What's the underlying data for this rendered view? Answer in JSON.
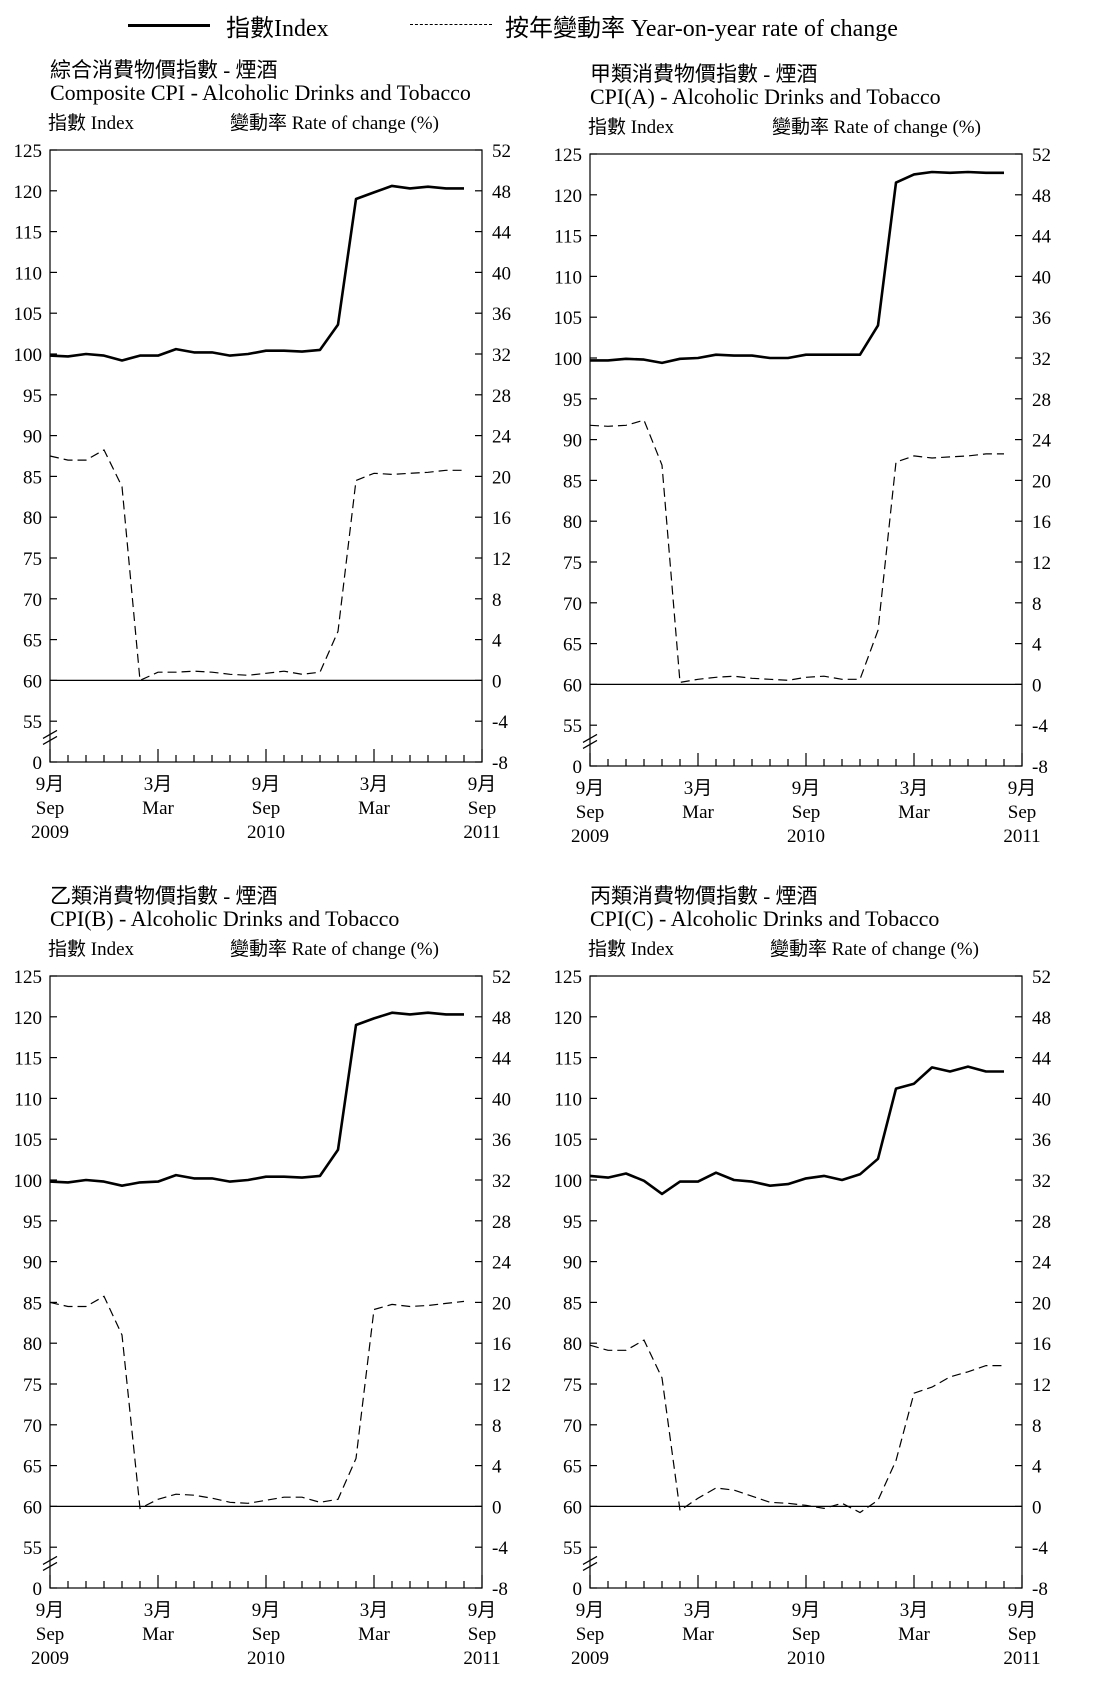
{
  "legend": {
    "index_label": "指數Index",
    "rate_label": "按年變動率 Year-on-year rate of change"
  },
  "common": {
    "left_axis_label": "指數 Index",
    "right_axis_label": "變動率 Rate of change (%)",
    "left_ticks": [
      125,
      120,
      115,
      110,
      105,
      100,
      95,
      90,
      85,
      80,
      75,
      70,
      65,
      60,
      55,
      0
    ],
    "right_ticks": [
      52,
      48,
      44,
      40,
      36,
      32,
      28,
      24,
      20,
      16,
      12,
      8,
      4,
      0,
      -4,
      -8
    ],
    "x_ticks": [
      {
        "zh": "9月",
        "en": "Sep",
        "year": "2009"
      },
      {
        "zh": "3月",
        "en": "Mar",
        "year": ""
      },
      {
        "zh": "9月",
        "en": "Sep",
        "year": "2010"
      },
      {
        "zh": "3月",
        "en": "Mar",
        "year": ""
      },
      {
        "zh": "9月",
        "en": "Sep",
        "year": "2011"
      }
    ],
    "colors": {
      "line": "#000000",
      "background": "#ffffff"
    }
  },
  "chart_data": [
    {
      "type": "line",
      "title_zh": "綜合消費物價指數 - 煙酒",
      "title": "Composite CPI - Alcoholic Drinks and Tobacco",
      "x": [
        "2009-09",
        "2009-10",
        "2009-11",
        "2009-12",
        "2010-01",
        "2010-02",
        "2010-03",
        "2010-04",
        "2010-05",
        "2010-06",
        "2010-07",
        "2010-08",
        "2010-09",
        "2010-10",
        "2010-11",
        "2010-12",
        "2011-01",
        "2011-02",
        "2011-03",
        "2011-04",
        "2011-05",
        "2011-06",
        "2011-07",
        "2011-08"
      ],
      "series": [
        {
          "name": "指數Index",
          "axis": "left",
          "values": [
            99.8,
            99.7,
            100.0,
            99.8,
            99.2,
            99.8,
            99.8,
            100.6,
            100.2,
            100.2,
            99.8,
            100.0,
            100.4,
            100.4,
            100.3,
            100.5,
            103.6,
            119.0,
            119.8,
            120.6,
            120.3,
            120.5,
            120.3,
            120.3
          ]
        },
        {
          "name": "按年變動率 Year-on-year rate of change",
          "axis": "right",
          "values": [
            22.0,
            21.6,
            21.6,
            22.6,
            19.0,
            0.0,
            0.8,
            0.8,
            0.9,
            0.8,
            0.6,
            0.5,
            0.7,
            0.9,
            0.6,
            0.8,
            4.8,
            19.6,
            20.3,
            20.2,
            20.3,
            20.4,
            20.6,
            20.6
          ]
        }
      ]
    },
    {
      "type": "line",
      "title_zh": "甲類消費物價指數 - 煙酒",
      "title": "CPI(A) - Alcoholic Drinks and Tobacco",
      "x": [
        "2009-09",
        "2009-10",
        "2009-11",
        "2009-12",
        "2010-01",
        "2010-02",
        "2010-03",
        "2010-04",
        "2010-05",
        "2010-06",
        "2010-07",
        "2010-08",
        "2010-09",
        "2010-10",
        "2010-11",
        "2010-12",
        "2011-01",
        "2011-02",
        "2011-03",
        "2011-04",
        "2011-05",
        "2011-06",
        "2011-07",
        "2011-08"
      ],
      "series": [
        {
          "name": "指數Index",
          "axis": "left",
          "values": [
            99.7,
            99.7,
            99.9,
            99.8,
            99.4,
            99.9,
            100.0,
            100.4,
            100.3,
            100.3,
            100.0,
            100.0,
            100.4,
            100.4,
            100.4,
            100.4,
            104.0,
            121.5,
            122.5,
            122.8,
            122.7,
            122.8,
            122.7,
            122.7
          ]
        },
        {
          "name": "按年變動率 Year-on-year rate of change",
          "axis": "right",
          "values": [
            25.4,
            25.3,
            25.4,
            25.9,
            21.5,
            0.2,
            0.5,
            0.7,
            0.8,
            0.6,
            0.5,
            0.4,
            0.7,
            0.8,
            0.5,
            0.5,
            5.3,
            21.8,
            22.4,
            22.2,
            22.3,
            22.4,
            22.6,
            22.6
          ]
        }
      ]
    },
    {
      "type": "line",
      "title_zh": "乙類消費物價指數 - 煙酒",
      "title": "CPI(B) - Alcoholic Drinks and Tobacco",
      "x": [
        "2009-09",
        "2009-10",
        "2009-11",
        "2009-12",
        "2010-01",
        "2010-02",
        "2010-03",
        "2010-04",
        "2010-05",
        "2010-06",
        "2010-07",
        "2010-08",
        "2010-09",
        "2010-10",
        "2010-11",
        "2010-12",
        "2011-01",
        "2011-02",
        "2011-03",
        "2011-04",
        "2011-05",
        "2011-06",
        "2011-07",
        "2011-08"
      ],
      "series": [
        {
          "name": "指數Index",
          "axis": "left",
          "values": [
            99.8,
            99.7,
            100.0,
            99.8,
            99.3,
            99.7,
            99.8,
            100.6,
            100.2,
            100.2,
            99.8,
            100.0,
            100.4,
            100.4,
            100.3,
            100.5,
            103.7,
            119.0,
            119.8,
            120.5,
            120.3,
            120.5,
            120.3,
            120.3
          ]
        },
        {
          "name": "按年變動率 Year-on-year rate of change",
          "axis": "right",
          "values": [
            20.0,
            19.6,
            19.6,
            20.6,
            16.8,
            -0.2,
            0.7,
            1.2,
            1.1,
            0.8,
            0.4,
            0.3,
            0.6,
            0.9,
            0.9,
            0.4,
            0.7,
            4.7,
            19.3,
            19.8,
            19.6,
            19.7,
            19.9,
            20.1
          ]
        }
      ]
    },
    {
      "type": "line",
      "title_zh": "丙類消費物價指數 - 煙酒",
      "title": "CPI(C) - Alcoholic Drinks and Tobacco",
      "x": [
        "2009-09",
        "2009-10",
        "2009-11",
        "2009-12",
        "2010-01",
        "2010-02",
        "2010-03",
        "2010-04",
        "2010-05",
        "2010-06",
        "2010-07",
        "2010-08",
        "2010-09",
        "2010-10",
        "2010-11",
        "2010-12",
        "2011-01",
        "2011-02",
        "2011-03",
        "2011-04",
        "2011-05",
        "2011-06",
        "2011-07",
        "2011-08"
      ],
      "series": [
        {
          "name": "指數Index",
          "axis": "left",
          "values": [
            100.5,
            100.3,
            100.8,
            99.9,
            98.3,
            99.8,
            99.8,
            100.9,
            100.0,
            99.8,
            99.3,
            99.5,
            100.2,
            100.5,
            100.0,
            100.7,
            102.6,
            111.2,
            111.8,
            113.8,
            113.3,
            113.9,
            113.3,
            113.3
          ]
        },
        {
          "name": "按年變動率 Year-on-year rate of change",
          "axis": "right",
          "values": [
            15.8,
            15.3,
            15.3,
            16.3,
            12.6,
            -0.4,
            0.8,
            1.8,
            1.6,
            1.0,
            0.4,
            0.3,
            0.1,
            -0.2,
            0.3,
            -0.6,
            0.6,
            4.5,
            11.1,
            11.7,
            12.7,
            13.2,
            13.8,
            13.8
          ]
        }
      ]
    }
  ]
}
